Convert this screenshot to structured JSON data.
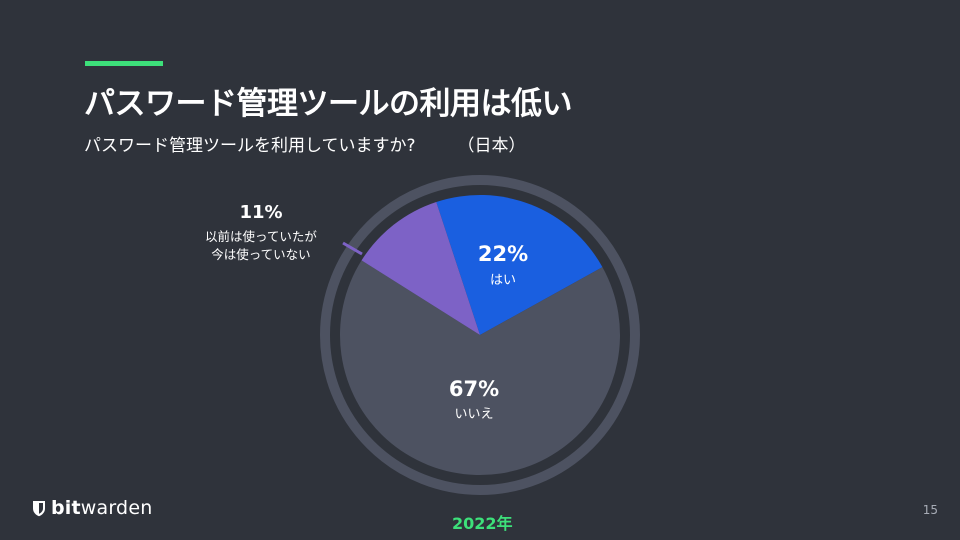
{
  "title": "パスワード管理ツールの利用は低い",
  "subtitle": "パスワード管理ツールを利用していますか?",
  "region": "（日本）",
  "year": "2022年",
  "page_number": "15",
  "logo": {
    "bold": "bit",
    "regular": "warden",
    "icon": "shield-icon"
  },
  "colors": {
    "accent": "#3de07a",
    "background": "#2f333b"
  },
  "chart_data": {
    "type": "pie",
    "slices": [
      {
        "label": "はい",
        "value": 22,
        "percent_label": "22%",
        "color": "#1a5fe0"
      },
      {
        "label": "いいえ",
        "value": 67,
        "percent_label": "67%",
        "color": "#4d5261"
      },
      {
        "label_line1": "以前は使っていたが",
        "label_line2": "今は使っていない",
        "value": 11,
        "percent_label": "11%",
        "color": "#7d62c6"
      }
    ],
    "ring_color": "#4d5261"
  }
}
